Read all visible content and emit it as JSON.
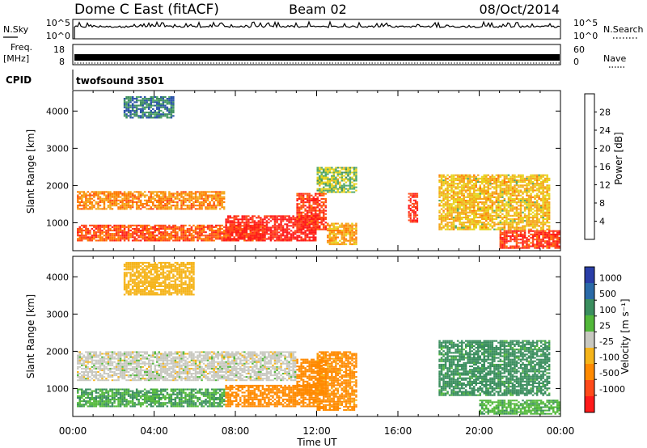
{
  "header": {
    "station": "Dome C East (fitACF)",
    "beam": "Beam 02",
    "date": "08/Oct/2014"
  },
  "top_panels": {
    "nsky_label": "N.Sky",
    "nsky_ticks": [
      "10^5",
      "10^0"
    ],
    "nsearch_label": "N.Search",
    "nsearch_ticks": [
      "10^5",
      "10^0"
    ],
    "freq_label": "Freq.",
    "freq_unit": "[MHz]",
    "freq_ticks": [
      "18",
      "8"
    ],
    "nave_label": "Nave",
    "nave_ticks": [
      "60",
      "0"
    ],
    "cpid_label": "CPID",
    "cpid_value": "twofsound 3501"
  },
  "colors": {
    "power": [
      "#1f1fff",
      "#2a52a8",
      "#3e8e5e",
      "#52a86a",
      "#e8d21a",
      "#f5a61a",
      "#ff7a00",
      "#ff4a1a",
      "#ff1a1a"
    ],
    "velocity": [
      "#2a3ea8",
      "#2a6aa8",
      "#3a8e5e",
      "#52b83a",
      "#c8c8c0",
      "#f5b41a",
      "#ff8a00",
      "#ff4a1a",
      "#ff1a1a"
    ]
  },
  "chart_data": [
    {
      "type": "heatmap",
      "title": "",
      "xlabel": "Time UT",
      "ylabel": "Slant Range [km]",
      "x_ticks": [
        "00:00",
        "04:00",
        "08:00",
        "12:00",
        "16:00",
        "20:00",
        "00:00"
      ],
      "y_ticks": [
        "1000",
        "2000",
        "3000",
        "4000"
      ],
      "ylim": [
        250,
        4550
      ],
      "colorbar": {
        "label": "Power [dB]",
        "ticks": [
          "4",
          "8",
          "12",
          "16",
          "20",
          "24",
          "28"
        ],
        "range": [
          0,
          32
        ]
      },
      "regions": [
        {
          "x": [
            0.2,
            7.5
          ],
          "y": [
            1350,
            1850
          ],
          "value": 22
        },
        {
          "x": [
            0.2,
            9.5
          ],
          "y": [
            500,
            950
          ],
          "value": 26
        },
        {
          "x": [
            7.5,
            12.0
          ],
          "y": [
            500,
            1200
          ],
          "value": 30
        },
        {
          "x": [
            11.0,
            12.5
          ],
          "y": [
            800,
            1800
          ],
          "value": 28
        },
        {
          "x": [
            12.0,
            14.0
          ],
          "y": [
            1800,
            2500
          ],
          "value": 14
        },
        {
          "x": [
            12.5,
            14.0
          ],
          "y": [
            400,
            1000
          ],
          "value": 20
        },
        {
          "x": [
            16.5,
            17.0
          ],
          "y": [
            1000,
            1800
          ],
          "value": 29
        },
        {
          "x": [
            18.0,
            23.5
          ],
          "y": [
            800,
            2300
          ],
          "value": 18
        },
        {
          "x": [
            21.0,
            24.0
          ],
          "y": [
            300,
            800
          ],
          "value": 28
        },
        {
          "x": [
            2.5,
            5.0
          ],
          "y": [
            3800,
            4400
          ],
          "value": 8
        }
      ]
    },
    {
      "type": "heatmap",
      "title": "",
      "xlabel": "Time UT",
      "ylabel": "Slant Range [km]",
      "x_ticks": [
        "00:00",
        "04:00",
        "08:00",
        "12:00",
        "16:00",
        "20:00",
        "00:00"
      ],
      "y_ticks": [
        "1000",
        "2000",
        "3000",
        "4000"
      ],
      "ylim": [
        250,
        4550
      ],
      "colorbar": {
        "label": "Velocity [m s⁻¹]",
        "ticks": [
          "1000",
          "500",
          "100",
          "25",
          "-25",
          "-100",
          "-500",
          "-1000"
        ]
      },
      "regions": [
        {
          "x": [
            0.2,
            11.0
          ],
          "y": [
            1200,
            2000
          ],
          "value": 0
        },
        {
          "x": [
            0.2,
            7.5
          ],
          "y": [
            500,
            1000
          ],
          "value": 100
        },
        {
          "x": [
            7.5,
            12.0
          ],
          "y": [
            500,
            1100
          ],
          "value": -300
        },
        {
          "x": [
            11.0,
            12.5
          ],
          "y": [
            800,
            1800
          ],
          "value": -250
        },
        {
          "x": [
            12.0,
            14.0
          ],
          "y": [
            400,
            2000
          ],
          "value": -150
        },
        {
          "x": [
            18.0,
            23.5
          ],
          "y": [
            800,
            2300
          ],
          "value": 150
        },
        {
          "x": [
            20.0,
            24.0
          ],
          "y": [
            300,
            700
          ],
          "value": 80
        },
        {
          "x": [
            2.5,
            6.0
          ],
          "y": [
            3500,
            4400
          ],
          "value": -60
        }
      ]
    }
  ]
}
